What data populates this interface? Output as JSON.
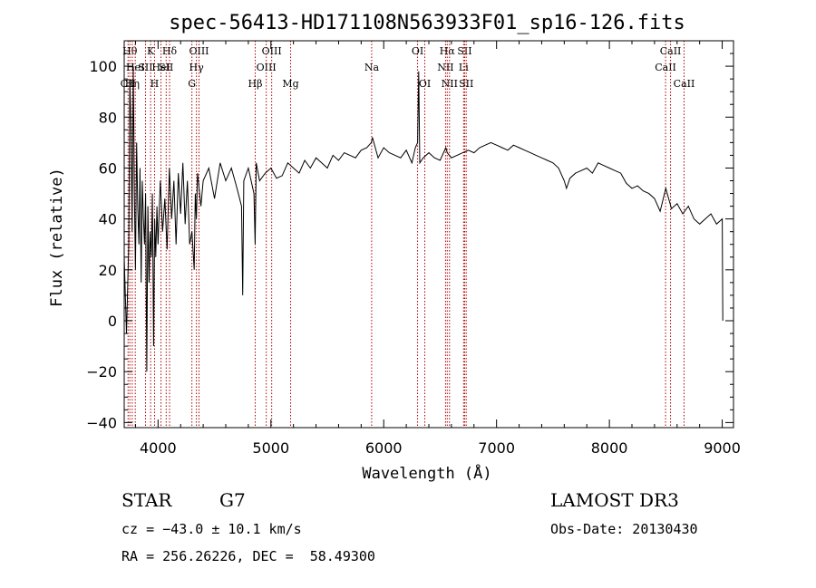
{
  "chart_data": {
    "type": "line",
    "title": "spec-56413-HD171108N563933F01_sp16-126.fits",
    "xlabel": "Wavelength (Å)",
    "ylabel": "Flux (relative)",
    "xlim": [
      3700,
      9100
    ],
    "ylim": [
      -42,
      110
    ],
    "xticks": [
      4000,
      5000,
      6000,
      7000,
      8000,
      9000
    ],
    "yticks": [
      -40,
      -20,
      0,
      20,
      40,
      60,
      80,
      100
    ],
    "series": [
      {
        "name": "flux",
        "x": [
          3700,
          3720,
          3740,
          3750,
          3760,
          3770,
          3780,
          3790,
          3800,
          3810,
          3820,
          3830,
          3840,
          3850,
          3860,
          3870,
          3880,
          3890,
          3900,
          3910,
          3920,
          3930,
          3940,
          3950,
          3960,
          3970,
          3980,
          3990,
          4000,
          4020,
          4040,
          4060,
          4080,
          4100,
          4120,
          4140,
          4160,
          4180,
          4200,
          4220,
          4240,
          4260,
          4280,
          4300,
          4320,
          4330,
          4340,
          4350,
          4380,
          4400,
          4450,
          4500,
          4550,
          4600,
          4650,
          4700,
          4740,
          4750,
          4760,
          4800,
          4850,
          4860,
          4870,
          4900,
          4950,
          5000,
          5050,
          5100,
          5150,
          5200,
          5250,
          5300,
          5350,
          5400,
          5450,
          5500,
          5550,
          5600,
          5650,
          5700,
          5750,
          5800,
          5850,
          5890,
          5900,
          5950,
          6000,
          6050,
          6100,
          6150,
          6200,
          6250,
          6280,
          6300,
          6310,
          6320,
          6350,
          6400,
          6450,
          6500,
          6550,
          6563,
          6600,
          6650,
          6700,
          6750,
          6800,
          6850,
          6900,
          6950,
          7000,
          7050,
          7100,
          7150,
          7200,
          7250,
          7300,
          7350,
          7400,
          7450,
          7500,
          7550,
          7600,
          7620,
          7650,
          7700,
          7750,
          7800,
          7850,
          7900,
          7950,
          8000,
          8050,
          8100,
          8150,
          8200,
          8250,
          8300,
          8350,
          8400,
          8450,
          8500,
          8550,
          8600,
          8650,
          8700,
          8750,
          8800,
          8850,
          8900,
          8950,
          9000,
          9005
        ],
        "values": [
          25,
          -5,
          30,
          95,
          75,
          35,
          100,
          50,
          20,
          70,
          45,
          30,
          60,
          15,
          55,
          40,
          30,
          50,
          -20,
          45,
          15,
          35,
          25,
          50,
          -10,
          40,
          25,
          45,
          30,
          55,
          35,
          48,
          28,
          60,
          40,
          55,
          30,
          58,
          42,
          62,
          38,
          55,
          30,
          35,
          20,
          50,
          40,
          58,
          45,
          55,
          60,
          48,
          62,
          55,
          60,
          52,
          45,
          10,
          55,
          60,
          50,
          30,
          62,
          55,
          58,
          60,
          56,
          57,
          62,
          60,
          58,
          63,
          60,
          64,
          62,
          60,
          65,
          63,
          66,
          65,
          64,
          67,
          68,
          70,
          72,
          64,
          68,
          66,
          65,
          64,
          67,
          62,
          68,
          70,
          98,
          62,
          64,
          66,
          64,
          63,
          68,
          66,
          64,
          65,
          66,
          67,
          66,
          68,
          69,
          70,
          69,
          68,
          67,
          69,
          68,
          67,
          66,
          65,
          64,
          63,
          62,
          60,
          55,
          52,
          56,
          58,
          59,
          60,
          58,
          62,
          61,
          60,
          59,
          58,
          54,
          52,
          53,
          51,
          50,
          48,
          43,
          52,
          44,
          46,
          42,
          45,
          40,
          38,
          40,
          42,
          38,
          40,
          0
        ]
      }
    ],
    "lines": [
      {
        "wl": 3734,
        "label": "CII",
        "row": 3
      },
      {
        "wl": 3750,
        "label": "Hθ",
        "row": 1
      },
      {
        "wl": 3771,
        "label": "Hη",
        "row": 3
      },
      {
        "wl": 3798,
        "label": "HeI",
        "row": 2
      },
      {
        "wl": 3889,
        "label": "SII",
        "row": 2
      },
      {
        "wl": 3934,
        "label": "K",
        "row": 1
      },
      {
        "wl": 3969,
        "label": "H",
        "row": 3
      },
      {
        "wl": 4026,
        "label": "HeI",
        "row": 2
      },
      {
        "wl": 4072,
        "label": "SII",
        "row": 2
      },
      {
        "wl": 4102,
        "label": "Hδ",
        "row": 1
      },
      {
        "wl": 4300,
        "label": "G",
        "row": 3
      },
      {
        "wl": 4340,
        "label": "Hγ",
        "row": 2
      },
      {
        "wl": 4363,
        "label": "OIII",
        "row": 1
      },
      {
        "wl": 4861,
        "label": "Hβ",
        "row": 3
      },
      {
        "wl": 4959,
        "label": "OIII",
        "row": 2
      },
      {
        "wl": 5007,
        "label": "OIII",
        "row": 1
      },
      {
        "wl": 5175,
        "label": "Mg",
        "row": 3
      },
      {
        "wl": 5893,
        "label": "Na",
        "row": 2
      },
      {
        "wl": 6300,
        "label": "OI",
        "row": 1
      },
      {
        "wl": 6364,
        "label": "OI",
        "row": 3
      },
      {
        "wl": 6548,
        "label": "NII",
        "row": 2
      },
      {
        "wl": 6563,
        "label": "Hα",
        "row": 1
      },
      {
        "wl": 6583,
        "label": "NII",
        "row": 3
      },
      {
        "wl": 6708,
        "label": "Li",
        "row": 2
      },
      {
        "wl": 6717,
        "label": "SII",
        "row": 1
      },
      {
        "wl": 6731,
        "label": "SII",
        "row": 3
      },
      {
        "wl": 8498,
        "label": "CaII",
        "row": 2
      },
      {
        "wl": 8542,
        "label": "CaII",
        "row": 1
      },
      {
        "wl": 8662,
        "label": "CaII",
        "row": 3
      }
    ]
  },
  "info": {
    "object_class": "STAR",
    "subclass": "G7",
    "survey": "LAMOST DR3",
    "redshift": "cz = −43.0 ± 10.1 km/s",
    "obs_date": "Obs-Date: 20130430",
    "coords": "RA = 256.26226, DEC =  58.49300"
  }
}
